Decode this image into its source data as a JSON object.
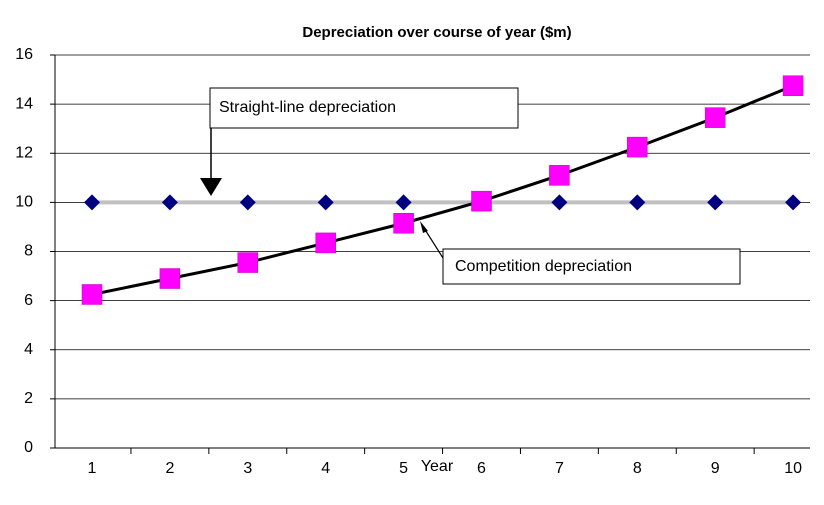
{
  "chart_data": {
    "type": "line",
    "title": "Depreciation over course of year ($m)",
    "x_label": "Year",
    "categories": [
      "1",
      "2",
      "3",
      "4",
      "5",
      "6",
      "7",
      "8",
      "9",
      "10"
    ],
    "series": [
      {
        "color": "#c0c0c0",
        "marker_color": "#000080",
        "marker": "diamond",
        "values": [
          10,
          10,
          10,
          10,
          10,
          10,
          10,
          10,
          10,
          10
        ]
      },
      {
        "color": "#000000",
        "marker_color": "#ff00ff",
        "marker": "square",
        "values": [
          6.25,
          6.9,
          7.55,
          8.35,
          9.15,
          10.05,
          11.1,
          12.25,
          13.45,
          14.75
        ]
      }
    ],
    "annotations": [
      "Straight-line depreciation",
      "Competition depreciation"
    ],
    "ylim": [
      0,
      16
    ],
    "yticks": [
      0,
      2,
      4,
      6,
      8,
      10,
      12,
      14,
      16
    ],
    "grid": true
  }
}
